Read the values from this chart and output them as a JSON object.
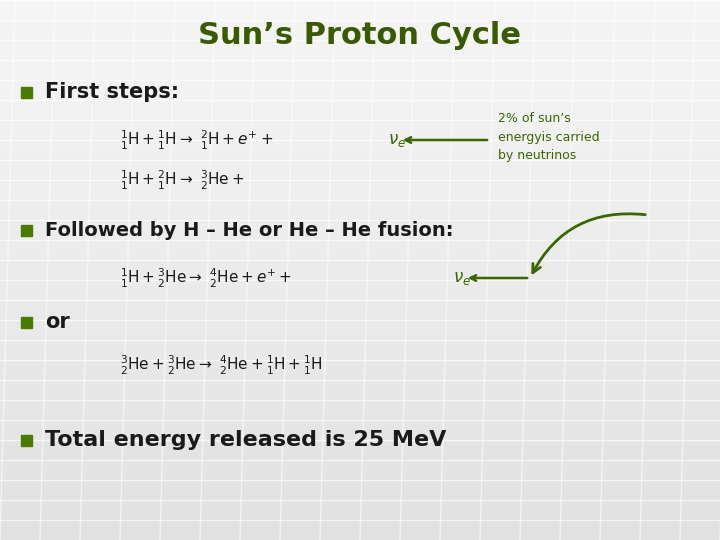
{
  "title": "Sun’s Proton Cycle",
  "title_color": "#3a5a00",
  "title_fontsize": 22,
  "bg_color": "#e0e0e0",
  "text_color": "#1a1a1a",
  "green_color": "#3a6600",
  "bullet_color": "#4a7a00",
  "eq1a": "$^{1}_{1}\\mathrm{H} + ^{1}_{1}\\mathrm{H} \\rightarrow\\ ^{2}_{1}\\mathrm{H} + e^{+} + $",
  "eq1_nu": "$\\nu_e$",
  "eq2": "$^{1}_{1}\\mathrm{H} + ^{2}_{1}\\mathrm{H} \\rightarrow\\ ^{3}_{2}\\mathrm{He} + $",
  "eq3a": "$^{1}_{1}\\mathrm{H} + ^{3}_{2}\\mathrm{He} \\rightarrow\\ ^{4}_{2}\\mathrm{He} + e^{+} + $",
  "eq3_nu": "$\\nu_e$",
  "eq4": "$^{3}_{2}\\mathrm{He} + ^{3}_{2}\\mathrm{He} \\rightarrow\\ ^{4}_{2}\\mathrm{He} + ^{1}_{1}\\mathrm{H} + ^{1}_{1}\\mathrm{H}$",
  "annotation": "2% of sun’s\nenergyis carried\nby neutrinos",
  "bullet1": "First steps:",
  "bullet2": "Followed by H – He or He – He fusion:",
  "bullet3": "or",
  "bullet4": "Total energy released is 25 MeV",
  "grid_line_color": "#ffffff",
  "grid_alpha": 0.75
}
